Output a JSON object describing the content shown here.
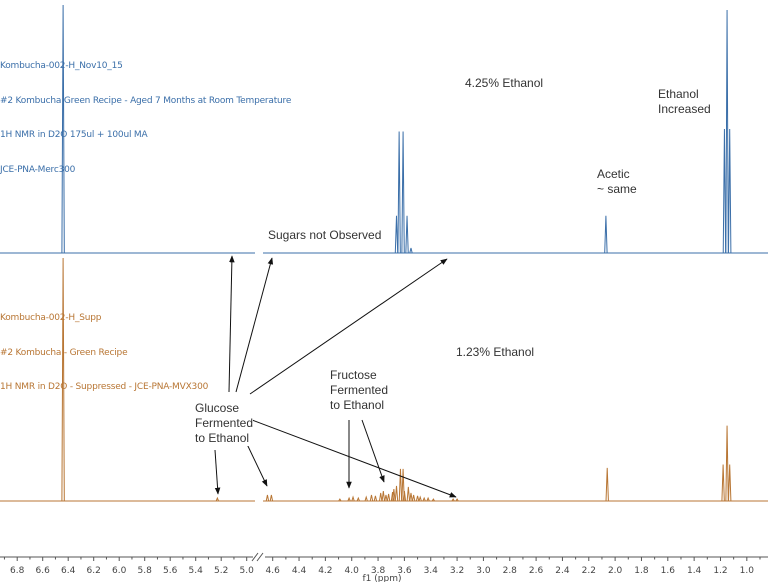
{
  "chart_data": {
    "type": "line",
    "xlabel": "f1 (ppm)",
    "ylabel": "",
    "xlim": [
      6.9,
      0.9
    ],
    "x_reversed": true,
    "axis_break": [
      5.0,
      4.6
    ],
    "grid": false,
    "tick_labels": [
      "6.8",
      "6.6",
      "6.4",
      "6.2",
      "6.0",
      "5.8",
      "5.6",
      "5.4",
      "5.2",
      "5.0",
      "4.6",
      "4.4",
      "4.2",
      "4.0",
      "3.8",
      "3.6",
      "3.4",
      "3.2",
      "3.0",
      "2.8",
      "2.6",
      "2.4",
      "2.2",
      "2.0",
      "1.8",
      "1.6",
      "1.4",
      "1.2",
      "1.0"
    ],
    "series": [
      {
        "color": "#3b6fa9",
        "header": [
          "Kombucha-002-H_Nov10_15",
          "#2 Kombucha Green Recipe - Aged 7 Months at Room Temperature",
          "1H NMR in D2O 175ul + 100ul MA",
          "JCE-PNA-Merc300"
        ],
        "peaks": [
          {
            "ppm": 6.44,
            "intensity": 100
          },
          {
            "ppm": 3.66,
            "intensity": 15
          },
          {
            "ppm": 3.64,
            "intensity": 49
          },
          {
            "ppm": 3.61,
            "intensity": 49
          },
          {
            "ppm": 3.58,
            "intensity": 15
          },
          {
            "ppm": 3.55,
            "intensity": 2
          },
          {
            "ppm": 2.07,
            "intensity": 15
          },
          {
            "ppm": 1.17,
            "intensity": 50
          },
          {
            "ppm": 1.15,
            "intensity": 98
          },
          {
            "ppm": 1.13,
            "intensity": 50
          }
        ]
      },
      {
        "color": "#b87634",
        "header": [
          "Kombucha-002-H_Supp",
          "#2 Kombucha - Green Recipe",
          "1H NMR in D2O - Suppressed - JCE-PNA-MVX300"
        ],
        "peaks": [
          {
            "ppm": 6.44,
            "intensity": 100
          },
          {
            "ppm": 5.23,
            "intensity": 1.2
          },
          {
            "ppm": 4.64,
            "intensity": 2.5
          },
          {
            "ppm": 4.61,
            "intensity": 2.5
          },
          {
            "ppm": 4.09,
            "intensity": 0.8
          },
          {
            "ppm": 4.02,
            "intensity": 1.2
          },
          {
            "ppm": 3.99,
            "intensity": 1.6
          },
          {
            "ppm": 3.95,
            "intensity": 1.2
          },
          {
            "ppm": 3.89,
            "intensity": 1.6
          },
          {
            "ppm": 3.85,
            "intensity": 2.5
          },
          {
            "ppm": 3.82,
            "intensity": 2.1
          },
          {
            "ppm": 3.78,
            "intensity": 3.3
          },
          {
            "ppm": 3.76,
            "intensity": 4.1
          },
          {
            "ppm": 3.74,
            "intensity": 2.5
          },
          {
            "ppm": 3.72,
            "intensity": 2.9
          },
          {
            "ppm": 3.69,
            "intensity": 3.7
          },
          {
            "ppm": 3.68,
            "intensity": 4.9
          },
          {
            "ppm": 3.66,
            "intensity": 6.2
          },
          {
            "ppm": 3.63,
            "intensity": 13.2
          },
          {
            "ppm": 3.61,
            "intensity": 13.2
          },
          {
            "ppm": 3.6,
            "intensity": 4.1
          },
          {
            "ppm": 3.57,
            "intensity": 5.8
          },
          {
            "ppm": 3.55,
            "intensity": 3.3
          },
          {
            "ppm": 3.53,
            "intensity": 2.5
          },
          {
            "ppm": 3.5,
            "intensity": 2.1
          },
          {
            "ppm": 3.48,
            "intensity": 1.6
          },
          {
            "ppm": 3.45,
            "intensity": 1.2
          },
          {
            "ppm": 3.42,
            "intensity": 1.2
          },
          {
            "ppm": 3.38,
            "intensity": 0.8
          },
          {
            "ppm": 3.23,
            "intensity": 0.8
          },
          {
            "ppm": 3.2,
            "intensity": 0.8
          },
          {
            "ppm": 2.06,
            "intensity": 13.6
          },
          {
            "ppm": 1.18,
            "intensity": 15
          },
          {
            "ppm": 1.15,
            "intensity": 31
          },
          {
            "ppm": 1.13,
            "intensity": 15
          }
        ]
      }
    ],
    "annotations": {
      "top_ethanol": "4.25% Ethanol",
      "ethanol_increased": "Ethanol\nIncreased",
      "acetic_same": "Acetic\n~ same",
      "sugars_not_observed": "Sugars not Observed",
      "bottom_ethanol": "1.23% Ethanol",
      "fructose": "Fructose\nFermented\nto Ethanol",
      "glucose": "Glucose\nFermented\nto Ethanol"
    }
  }
}
